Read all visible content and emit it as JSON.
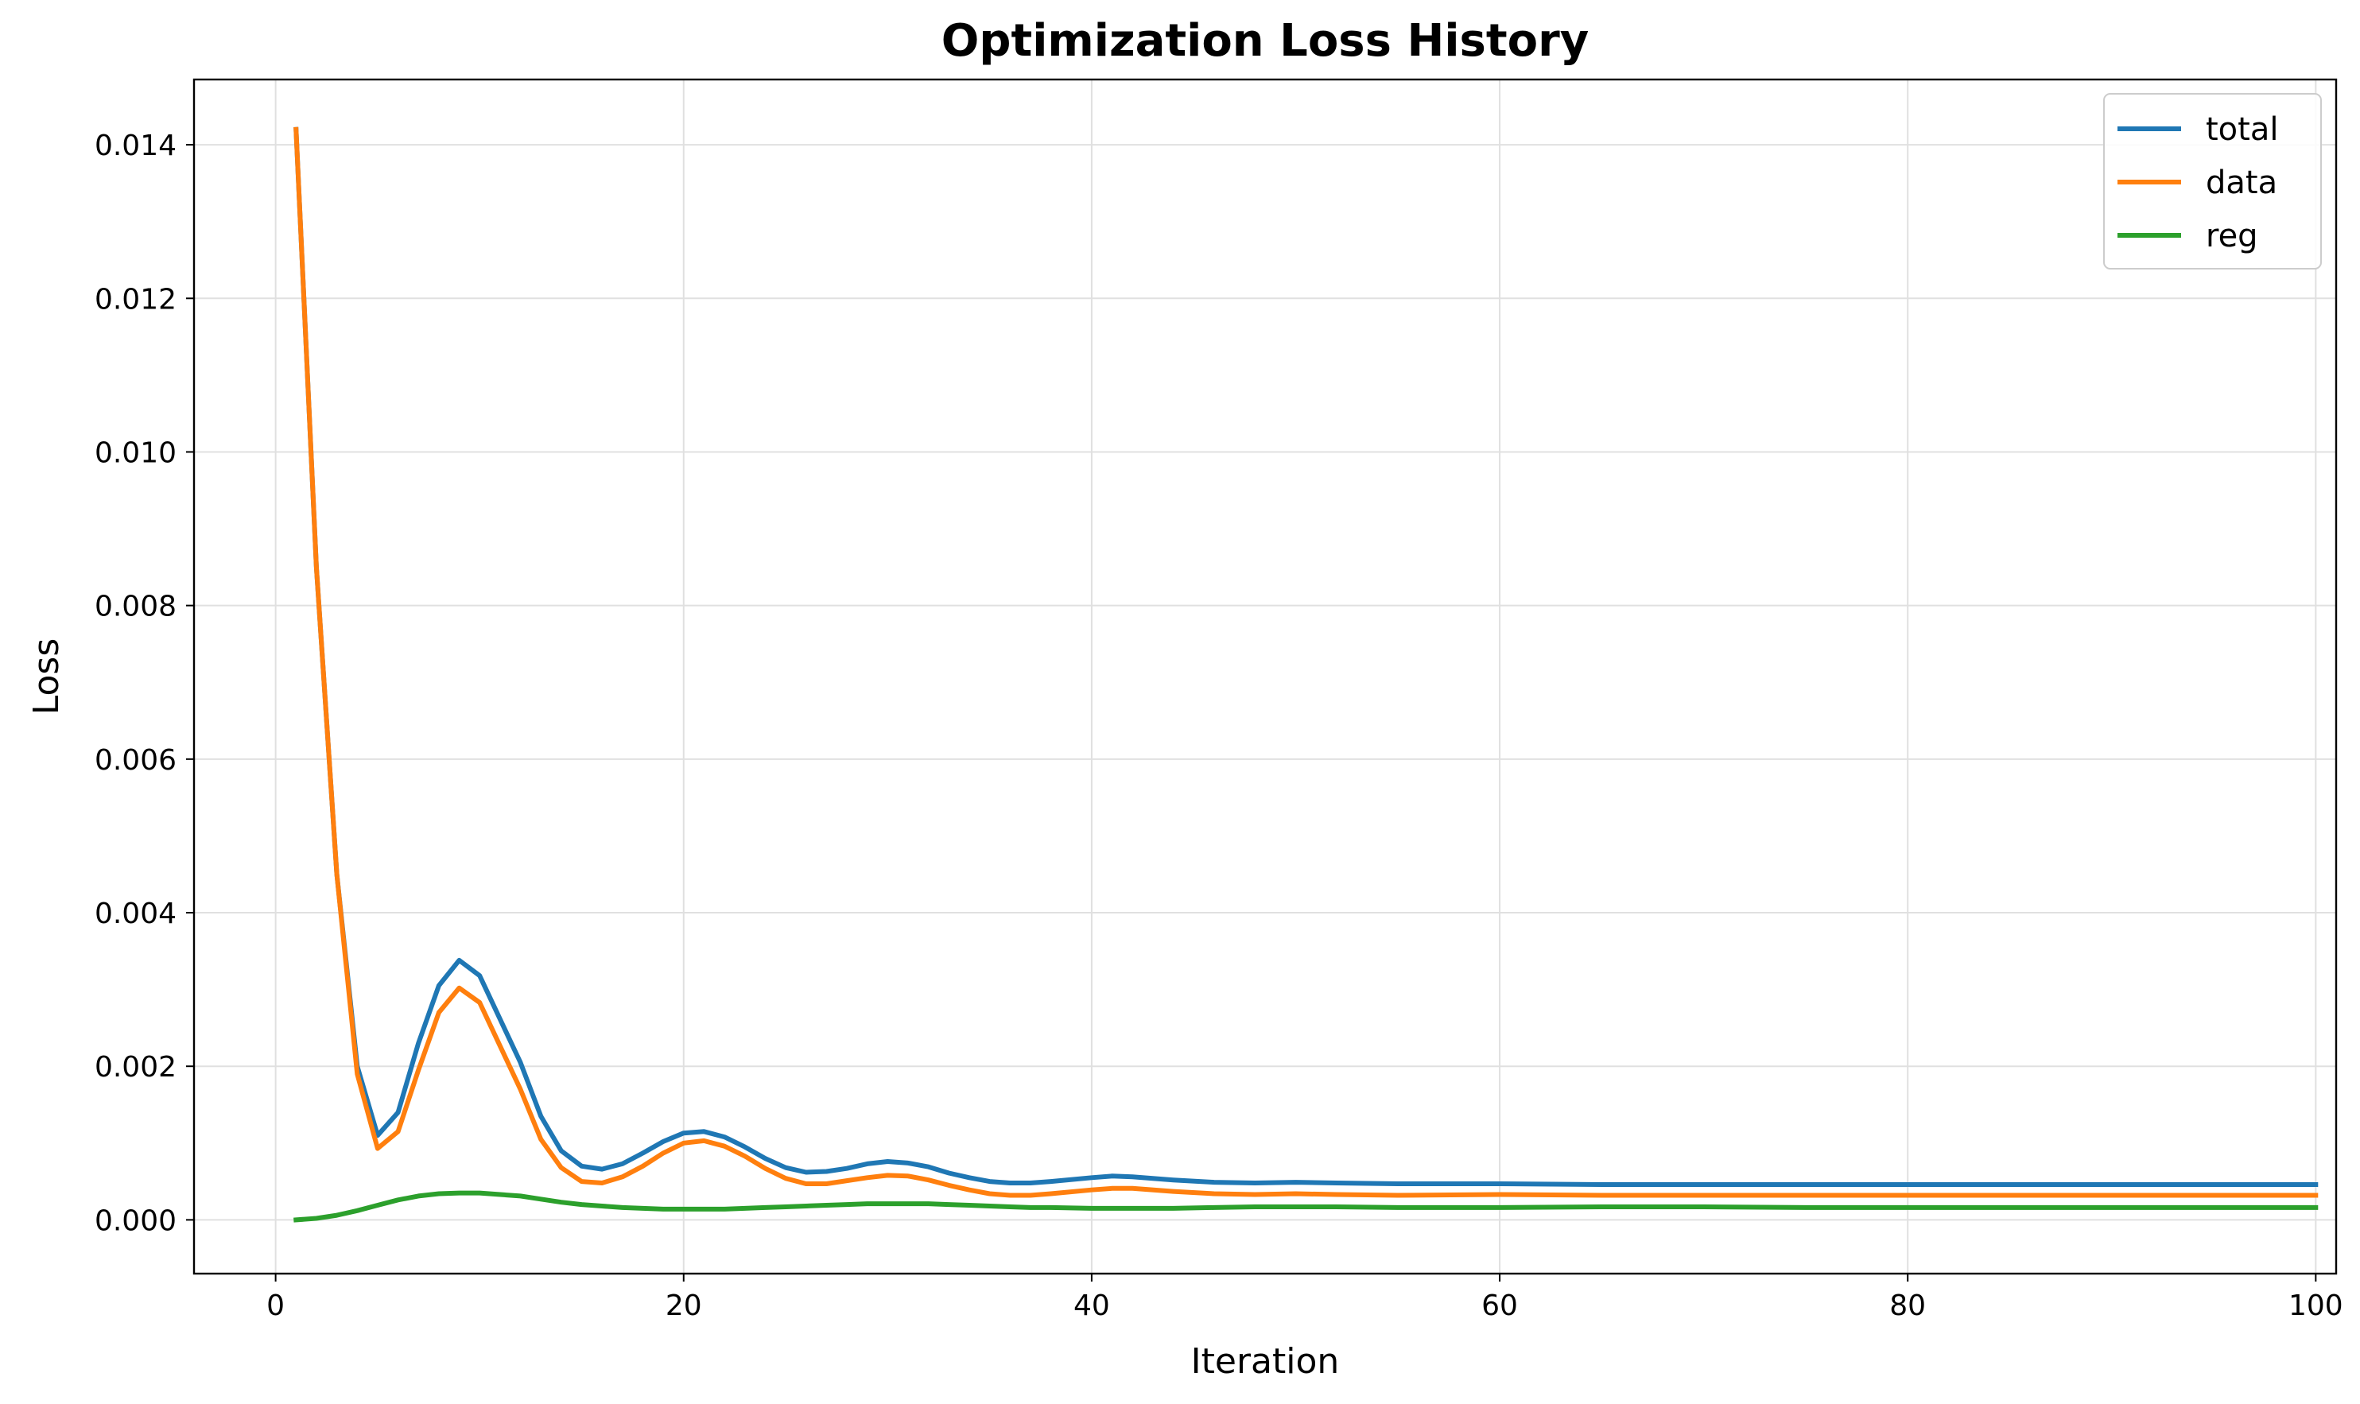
{
  "chart_data": {
    "type": "line",
    "title": "Optimization Loss History",
    "xlabel": "Iteration",
    "ylabel": "Loss",
    "xlim": [
      -4,
      101
    ],
    "ylim": [
      -0.0007,
      0.01485
    ],
    "xticks": [
      0,
      20,
      40,
      60,
      80,
      100
    ],
    "xtick_labels": [
      "0",
      "20",
      "40",
      "60",
      "80",
      "100"
    ],
    "yticks": [
      0.0,
      0.002,
      0.004,
      0.006,
      0.008,
      0.01,
      0.012,
      0.014
    ],
    "ytick_labels": [
      "0.000",
      "0.002",
      "0.004",
      "0.006",
      "0.008",
      "0.010",
      "0.012",
      "0.014"
    ],
    "grid": true,
    "legend_position": "top-right",
    "x": [
      1,
      2,
      3,
      4,
      5,
      6,
      7,
      8,
      9,
      10,
      12,
      13,
      14,
      15,
      16,
      17,
      18,
      19,
      20,
      21,
      22,
      23,
      24,
      25,
      26,
      27,
      28,
      29,
      30,
      31,
      32,
      33,
      34,
      35,
      36,
      37,
      38,
      40,
      41,
      42,
      44,
      46,
      48,
      50,
      52,
      55,
      60,
      65,
      70,
      75,
      80,
      85,
      90,
      95,
      100
    ],
    "series": [
      {
        "name": "total",
        "color": "#1f77b4",
        "values": [
          0.0142,
          0.0085,
          0.0045,
          0.002,
          0.0011,
          0.0014,
          0.0023,
          0.00305,
          0.00338,
          0.00318,
          0.00205,
          0.00135,
          0.0009,
          0.0007,
          0.00066,
          0.00073,
          0.00087,
          0.00102,
          0.00113,
          0.00115,
          0.00108,
          0.00095,
          0.0008,
          0.00068,
          0.00062,
          0.00063,
          0.00067,
          0.00073,
          0.00076,
          0.00074,
          0.00069,
          0.00061,
          0.00055,
          0.0005,
          0.00048,
          0.00048,
          0.0005,
          0.00055,
          0.00057,
          0.00056,
          0.00052,
          0.00049,
          0.00048,
          0.00049,
          0.00048,
          0.00047,
          0.00047,
          0.00046,
          0.00046,
          0.00046,
          0.00046,
          0.00046,
          0.00046,
          0.00046,
          0.00046
        ]
      },
      {
        "name": "data",
        "color": "#ff7f0e",
        "values": [
          0.0142,
          0.0085,
          0.0045,
          0.0019,
          0.00093,
          0.00115,
          0.00195,
          0.0027,
          0.00302,
          0.00283,
          0.0017,
          0.00105,
          0.00068,
          0.0005,
          0.00048,
          0.00056,
          0.0007,
          0.00087,
          0.001,
          0.00103,
          0.00096,
          0.00083,
          0.00067,
          0.00054,
          0.00047,
          0.00047,
          0.00051,
          0.00055,
          0.00058,
          0.00057,
          0.00052,
          0.00045,
          0.00039,
          0.00034,
          0.00032,
          0.00032,
          0.00034,
          0.00039,
          0.00041,
          0.00041,
          0.00037,
          0.00034,
          0.00033,
          0.00034,
          0.00033,
          0.00032,
          0.00033,
          0.00032,
          0.00032,
          0.00032,
          0.00032,
          0.00032,
          0.00032,
          0.00032,
          0.00032
        ]
      },
      {
        "name": "reg",
        "color": "#2ca02c",
        "values": [
          0.0,
          2e-05,
          6e-05,
          0.00012,
          0.00019,
          0.00026,
          0.00031,
          0.00034,
          0.00035,
          0.00035,
          0.00031,
          0.00027,
          0.00023,
          0.0002,
          0.00018,
          0.00016,
          0.00015,
          0.00014,
          0.00014,
          0.00014,
          0.00014,
          0.00015,
          0.00016,
          0.00017,
          0.00018,
          0.00019,
          0.0002,
          0.00021,
          0.00021,
          0.00021,
          0.00021,
          0.0002,
          0.00019,
          0.00018,
          0.00017,
          0.00016,
          0.00016,
          0.00015,
          0.00015,
          0.00015,
          0.00015,
          0.00016,
          0.00017,
          0.00017,
          0.00017,
          0.00016,
          0.00016,
          0.00017,
          0.00017,
          0.00016,
          0.00016,
          0.00016,
          0.00016,
          0.00016,
          0.00016
        ]
      }
    ]
  }
}
